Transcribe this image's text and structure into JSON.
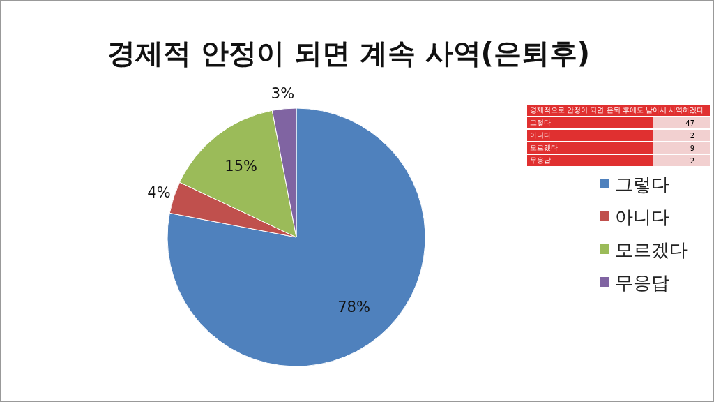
{
  "chart_data": [
    {
      "type": "pie",
      "title": "경제적 안정이 되면 계속 사역(은퇴후)",
      "categories": [
        "그렇다",
        "아니다",
        "모르겠다",
        "무응답"
      ],
      "values": [
        78,
        4,
        15,
        3
      ],
      "value_labels": [
        "78%",
        "4%",
        "15%",
        "3%"
      ],
      "colors": [
        "#4f81bd",
        "#c0504d",
        "#9bbb59",
        "#8064a2"
      ],
      "legend": "right"
    },
    {
      "type": "other",
      "title": "경제적으로 안정이 되면 은퇴 후에도 남아서 사역하겠다",
      "categories": [
        "그렇다",
        "아니다",
        "모르겠다",
        "무응답"
      ],
      "values": [
        47,
        2,
        9,
        2
      ],
      "data_labels": true
    }
  ]
}
